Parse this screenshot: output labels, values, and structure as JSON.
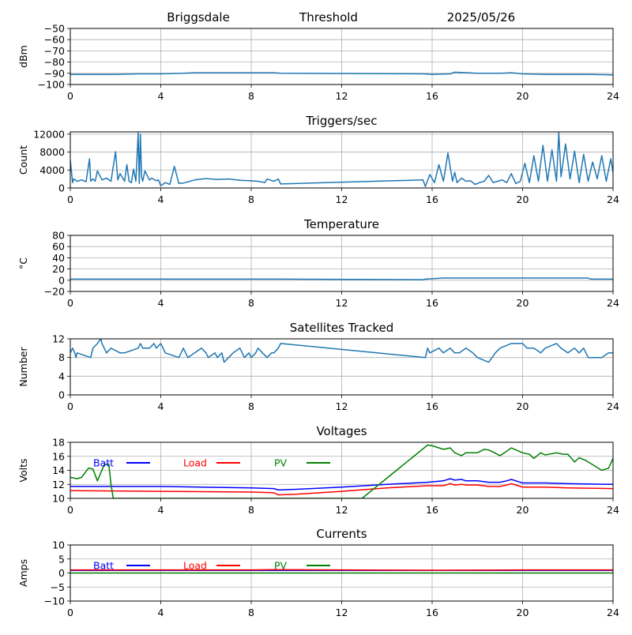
{
  "header": {
    "station": "Briggsdale",
    "mode": "Threshold",
    "date": "2025/05/26"
  },
  "chart_data": [
    {
      "id": "rssi",
      "type": "line",
      "title": "",
      "ylabel": "dBm",
      "xlim": [
        0,
        24
      ],
      "ylim": [
        -100,
        -50
      ],
      "xticks": [
        0,
        4,
        8,
        12,
        16,
        20,
        24
      ],
      "yticks": [
        -100,
        -90,
        -80,
        -70,
        -60,
        -50
      ],
      "grid": true,
      "series": [
        {
          "color": "#1f77b4",
          "x": [
            0,
            1,
            2,
            3,
            4,
            5,
            5.5,
            6,
            7,
            8,
            9,
            9.3,
            15.6,
            16,
            16.8,
            17,
            18,
            19,
            19.5,
            20,
            21,
            22,
            23,
            24
          ],
          "y": [
            -91,
            -91,
            -91,
            -90.5,
            -90.5,
            -90,
            -89.5,
            -89.5,
            -89.5,
            -89.5,
            -89.5,
            -90,
            -90.5,
            -91,
            -90.5,
            -89,
            -90,
            -90,
            -89.5,
            -90.5,
            -91,
            -91,
            -91,
            -91.5
          ]
        }
      ]
    },
    {
      "id": "triggers",
      "type": "line",
      "title": "Triggers/sec",
      "ylabel": "Count",
      "xlim": [
        0,
        24
      ],
      "ylim": [
        0,
        12500
      ],
      "xticks": [
        0,
        4,
        8,
        12,
        16,
        20,
        24
      ],
      "yticks": [
        0,
        4000,
        8000,
        12000
      ],
      "grid": true,
      "series": [
        {
          "color": "#1f77b4",
          "x": [
            0,
            0.1,
            0.15,
            0.3,
            0.5,
            0.7,
            0.85,
            0.9,
            1.0,
            1.1,
            1.2,
            1.4,
            1.6,
            1.8,
            2.0,
            2.1,
            2.2,
            2.4,
            2.5,
            2.6,
            2.7,
            2.8,
            2.9,
            3.0,
            3.05,
            3.1,
            3.15,
            3.2,
            3.3,
            3.5,
            3.6,
            3.8,
            3.9,
            4.0,
            4.2,
            4.4,
            4.6,
            4.8,
            5.0,
            5.5,
            6.0,
            6.5,
            7.0,
            7.5,
            8.0,
            8.3,
            8.6,
            8.7,
            9.0,
            9.2,
            9.3,
            15.6,
            15.7,
            15.9,
            16.1,
            16.3,
            16.5,
            16.7,
            16.9,
            17.0,
            17.1,
            17.3,
            17.5,
            17.7,
            17.9,
            18.1,
            18.3,
            18.5,
            18.7,
            18.9,
            19.1,
            19.3,
            19.5,
            19.7,
            19.9,
            20.1,
            20.3,
            20.5,
            20.7,
            20.9,
            21.1,
            21.3,
            21.5,
            21.6,
            21.7,
            21.9,
            22.1,
            22.3,
            22.5,
            22.7,
            22.9,
            23.1,
            23.3,
            23.5,
            23.7,
            23.9,
            24
          ],
          "y": [
            6200,
            1200,
            2000,
            1500,
            1800,
            1400,
            6500,
            1500,
            2000,
            1500,
            3800,
            1800,
            2200,
            1500,
            8100,
            1800,
            3200,
            1500,
            5200,
            1500,
            1200,
            4200,
            1500,
            12300,
            1000,
            12000,
            2500,
            1500,
            3800,
            1800,
            2200,
            1600,
            1800,
            500,
            1200,
            800,
            4800,
            1000,
            1100,
            1800,
            2100,
            1900,
            2000,
            1700,
            1600,
            1500,
            1200,
            2000,
            1500,
            2000,
            900,
            1800,
            300,
            3000,
            1200,
            5200,
            1500,
            7800,
            1500,
            3500,
            1200,
            2200,
            1500,
            1600,
            800,
            1200,
            1500,
            2800,
            1200,
            1500,
            1800,
            1200,
            3200,
            1000,
            1500,
            5500,
            1200,
            7200,
            1500,
            9500,
            1500,
            8500,
            1500,
            12300,
            2500,
            9800,
            2000,
            8200,
            1200,
            7500,
            1500,
            5800,
            2000,
            7200,
            1500,
            6500,
            3500
          ]
        }
      ]
    },
    {
      "id": "temperature",
      "type": "line",
      "title": "Temperature",
      "ylabel": "°C",
      "xlim": [
        0,
        24
      ],
      "ylim": [
        -20,
        80
      ],
      "xticks": [
        0,
        4,
        8,
        12,
        16,
        20,
        24
      ],
      "yticks": [
        -20,
        0,
        20,
        40,
        60,
        80
      ],
      "grid": true,
      "series": [
        {
          "color": "#1f77b4",
          "x": [
            0,
            4,
            8,
            9.3,
            15.6,
            15.7,
            16.5,
            22.9,
            23.0,
            24
          ],
          "y": [
            2,
            2,
            2,
            2,
            1,
            2,
            4,
            4,
            2,
            2
          ]
        }
      ]
    },
    {
      "id": "satellites",
      "type": "line",
      "title": "Satellites Tracked",
      "ylabel": "Number",
      "xlim": [
        0,
        24
      ],
      "ylim": [
        0,
        12
      ],
      "xticks": [
        0,
        4,
        8,
        12,
        16,
        20,
        24
      ],
      "yticks": [
        0,
        4,
        8,
        12
      ],
      "grid": true,
      "series": [
        {
          "color": "#1f77b4",
          "x": [
            0,
            0.1,
            0.2,
            0.25,
            0.3,
            0.9,
            0.95,
            1.0,
            1.2,
            1.35,
            1.4,
            1.5,
            1.6,
            1.8,
            2.2,
            2.4,
            3.0,
            3.1,
            3.2,
            3.5,
            3.7,
            3.8,
            4.0,
            4.1,
            4.2,
            4.8,
            4.9,
            5.0,
            5.1,
            5.2,
            5.5,
            5.8,
            6.0,
            6.1,
            6.4,
            6.5,
            6.7,
            6.8,
            7.0,
            7.2,
            7.5,
            7.7,
            7.9,
            8.0,
            8.2,
            8.3,
            8.5,
            8.7,
            8.9,
            9.0,
            9.2,
            9.3,
            15.7,
            15.8,
            15.9,
            16.3,
            16.5,
            16.8,
            17.0,
            17.2,
            17.5,
            17.8,
            18.0,
            18.5,
            18.8,
            19.0,
            19.5,
            20.0,
            20.2,
            20.5,
            20.8,
            21.0,
            21.5,
            21.7,
            22.0,
            22.3,
            22.5,
            22.7,
            22.9,
            23.5,
            23.8,
            24
          ],
          "y": [
            9,
            10,
            9,
            8,
            9,
            8,
            9,
            10,
            11,
            12,
            11,
            10,
            9,
            10,
            9,
            9,
            10,
            11,
            10,
            10,
            11,
            10,
            11,
            10,
            9,
            8,
            9,
            10,
            9,
            8,
            9,
            10,
            9,
            8,
            9,
            8,
            9,
            7,
            8,
            9,
            10,
            8,
            9,
            8,
            9,
            10,
            9,
            8,
            9,
            9,
            10,
            11,
            8,
            10,
            9,
            10,
            9,
            10,
            9,
            9,
            10,
            9,
            8,
            7,
            9,
            10,
            11,
            11,
            10,
            10,
            9,
            10,
            11,
            10,
            9,
            10,
            9,
            10,
            8,
            8,
            9,
            9
          ]
        }
      ]
    },
    {
      "id": "voltages",
      "type": "line",
      "title": "Voltages",
      "ylabel": "Volts",
      "xlim": [
        0,
        24
      ],
      "ylim": [
        10,
        18
      ],
      "xticks": [
        0,
        4,
        8,
        12,
        16,
        20,
        24
      ],
      "yticks": [
        10,
        12,
        14,
        16,
        18
      ],
      "grid": true,
      "legend": "top-left",
      "series": [
        {
          "name": "Batt",
          "color": "#0000ff",
          "x": [
            0,
            4,
            8,
            9.0,
            9.2,
            10,
            12,
            14,
            15.8,
            16.5,
            16.8,
            17.0,
            17.3,
            17.5,
            18.0,
            18.5,
            19.0,
            19.3,
            19.5,
            19.8,
            20.0,
            21.0,
            22.0,
            24
          ],
          "y": [
            11.7,
            11.7,
            11.5,
            11.4,
            11.2,
            11.3,
            11.6,
            12.0,
            12.3,
            12.5,
            12.8,
            12.6,
            12.7,
            12.5,
            12.5,
            12.3,
            12.3,
            12.5,
            12.7,
            12.4,
            12.2,
            12.2,
            12.1,
            12.0
          ]
        },
        {
          "name": "Load",
          "color": "#ff0000",
          "x": [
            0,
            4,
            8,
            9.0,
            9.2,
            10,
            12,
            14,
            15.8,
            16.5,
            16.8,
            17.0,
            17.3,
            17.5,
            18.0,
            18.5,
            19.0,
            19.3,
            19.5,
            19.8,
            20.0,
            21.0,
            22.0,
            24
          ],
          "y": [
            11.1,
            11.0,
            10.9,
            10.8,
            10.5,
            10.6,
            11.0,
            11.5,
            11.8,
            11.8,
            12.1,
            11.9,
            12.0,
            11.9,
            11.9,
            11.7,
            11.7,
            11.9,
            12.1,
            11.8,
            11.6,
            11.6,
            11.5,
            11.4
          ]
        },
        {
          "name": "PV",
          "color": "#008000",
          "x": [
            0,
            0.3,
            0.5,
            0.8,
            1.0,
            1.2,
            1.5,
            1.7,
            1.8,
            1.9,
            12.9,
            15.8,
            16.0,
            16.5,
            16.8,
            17.0,
            17.3,
            17.5,
            18.0,
            18.3,
            18.5,
            18.7,
            19.0,
            19.2,
            19.5,
            20.0,
            20.3,
            20.5,
            20.8,
            21.0,
            21.5,
            21.8,
            22.0,
            22.3,
            22.5,
            22.8,
            23.0,
            23.5,
            23.8,
            24
          ],
          "y": [
            13.0,
            12.8,
            13.0,
            14.3,
            14.2,
            12.5,
            14.8,
            14.9,
            12.0,
            10.0,
            10.0,
            17.6,
            17.5,
            17.0,
            17.2,
            16.5,
            16.1,
            16.5,
            16.5,
            17.0,
            16.9,
            16.6,
            16.1,
            16.5,
            17.2,
            16.5,
            16.3,
            15.7,
            16.5,
            16.2,
            16.5,
            16.3,
            16.3,
            15.2,
            15.8,
            15.4,
            15.0,
            14.0,
            14.3,
            15.7
          ]
        }
      ]
    },
    {
      "id": "currents",
      "type": "line",
      "title": "Currents",
      "ylabel": "Amps",
      "xlim": [
        0,
        24
      ],
      "ylim": [
        -10,
        10
      ],
      "xticks": [
        0,
        4,
        8,
        12,
        16,
        20,
        24
      ],
      "yticks": [
        -10,
        -5,
        0,
        5,
        10
      ],
      "grid": true,
      "legend": "top-left",
      "series": [
        {
          "name": "Batt",
          "color": "#0000ff",
          "x": [
            0,
            24
          ],
          "y": [
            0.9,
            0.9
          ]
        },
        {
          "name": "Load",
          "color": "#ff0000",
          "x": [
            0,
            4,
            8,
            9,
            12,
            16,
            20,
            24
          ],
          "y": [
            1.1,
            1.1,
            1.1,
            1.2,
            1.1,
            1.0,
            1.1,
            1.1
          ]
        },
        {
          "name": "PV",
          "color": "#008000",
          "x": [
            0,
            24
          ],
          "y": [
            0.0,
            0.0
          ]
        }
      ]
    }
  ]
}
